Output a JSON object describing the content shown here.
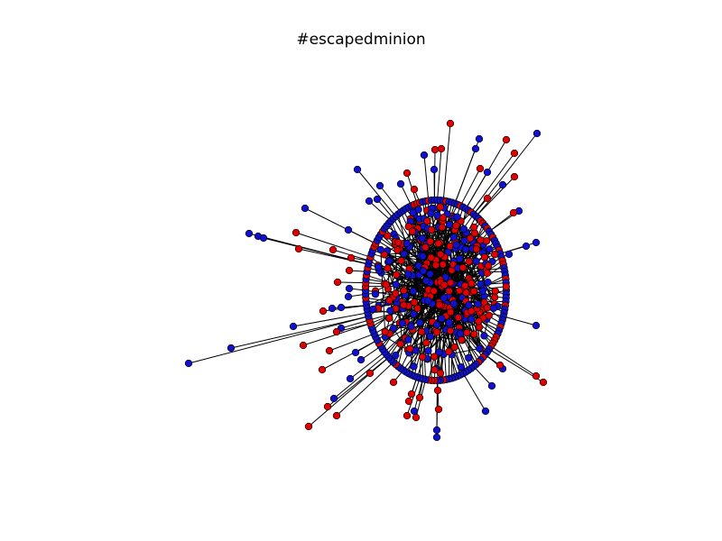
{
  "title": "#escapedminion",
  "colors": {
    "group_a": "#e00000",
    "group_b": "#1010d0",
    "edge": "#000000",
    "node_stroke": "#000000"
  },
  "graph": {
    "layout": "spring",
    "node_groups": [
      "group_a",
      "group_b"
    ]
  }
}
